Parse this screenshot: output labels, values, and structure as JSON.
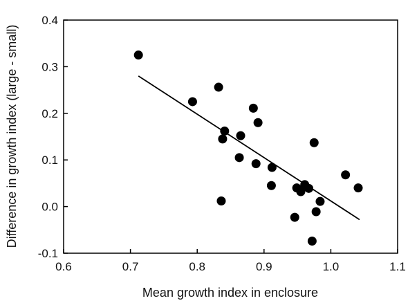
{
  "chart_data": {
    "type": "scatter",
    "title": "",
    "xlabel": "Mean growth index in enclosure",
    "ylabel": "Difference in growth index (large - small)",
    "xlim": [
      0.6,
      1.1
    ],
    "ylim": [
      -0.1,
      0.4
    ],
    "x_ticks": [
      "0.6",
      "0.7",
      "0.8",
      "0.9",
      "1.0",
      "1.1"
    ],
    "y_ticks": [
      "-0.1",
      "0.0",
      "0.1",
      "0.2",
      "0.3",
      "0.4"
    ],
    "grid": false,
    "legend": "none",
    "marker_color": "#000000",
    "points": [
      {
        "x": 0.712,
        "y": 0.325
      },
      {
        "x": 0.793,
        "y": 0.225
      },
      {
        "x": 0.832,
        "y": 0.256
      },
      {
        "x": 0.836,
        "y": 0.012
      },
      {
        "x": 0.838,
        "y": 0.145
      },
      {
        "x": 0.841,
        "y": 0.162
      },
      {
        "x": 0.863,
        "y": 0.105
      },
      {
        "x": 0.865,
        "y": 0.152
      },
      {
        "x": 0.884,
        "y": 0.211
      },
      {
        "x": 0.888,
        "y": 0.092
      },
      {
        "x": 0.891,
        "y": 0.18
      },
      {
        "x": 0.911,
        "y": 0.045
      },
      {
        "x": 0.912,
        "y": 0.084
      },
      {
        "x": 0.946,
        "y": -0.023
      },
      {
        "x": 0.949,
        "y": 0.04
      },
      {
        "x": 0.955,
        "y": 0.032
      },
      {
        "x": 0.961,
        "y": 0.047
      },
      {
        "x": 0.967,
        "y": 0.039
      },
      {
        "x": 0.972,
        "y": -0.074
      },
      {
        "x": 0.975,
        "y": 0.137
      },
      {
        "x": 0.978,
        "y": -0.011
      },
      {
        "x": 0.984,
        "y": 0.011
      },
      {
        "x": 1.022,
        "y": 0.068
      },
      {
        "x": 1.041,
        "y": 0.04
      }
    ],
    "trendline": {
      "x": [
        0.712,
        1.043
      ],
      "y": [
        0.28,
        -0.028
      ]
    }
  }
}
